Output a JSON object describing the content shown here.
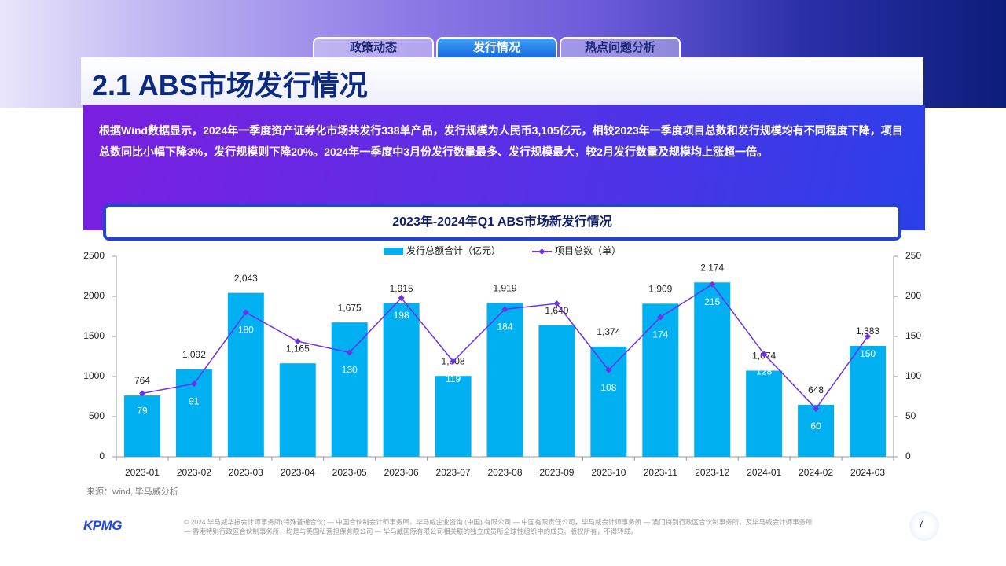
{
  "tabs": [
    "政策动态",
    "发行情况",
    "热点问题分析"
  ],
  "heading": "2.1 ABS市场发行情况",
  "summary": "根据Wind数据显示，2024年一季度资产证券化市场共发行338单产品，发行规模为人民币3,105亿元，相较2023年一季度项目总数和发行规模均有不同程度下降，项目总数同比小幅下降3%，发行规模则下降20%。2024年一季度中3月份发行数量最多、发行规模最大，较2月发行数量及规模均上涨超一倍。",
  "chart_data": {
    "type": "bar",
    "title": "2023年-2024年Q1 ABS市场新发行情况",
    "categories": [
      "2023-01",
      "2023-02",
      "2023-03",
      "2023-04",
      "2023-05",
      "2023-06",
      "2023-07",
      "2023-08",
      "2023-09",
      "2023-10",
      "2023-11",
      "2023-12",
      "2024-01",
      "2024-02",
      "2024-03"
    ],
    "series": [
      {
        "name": "发行总额合计（亿元）",
        "type": "bar",
        "color": "#00b0f0",
        "values": [
          764,
          1092,
          2043,
          1165,
          1675,
          1915,
          1008,
          1919,
          1640,
          1374,
          1909,
          2174,
          1074,
          648,
          1383
        ],
        "value_labels": [
          "764",
          "1,092",
          "2,043",
          "1,165",
          "1,675",
          "1,915",
          "1,008",
          "1,919",
          "1,640",
          "1,374",
          "1,909",
          "2,174",
          "1,074",
          "648",
          "1,383"
        ]
      },
      {
        "name": "项目总数（单）",
        "type": "line",
        "color": "#7030e8",
        "axis": "y2",
        "values": [
          79,
          91,
          180,
          144,
          130,
          198,
          119,
          184,
          191,
          108,
          174,
          215,
          128,
          60,
          150
        ]
      }
    ],
    "ylim": [
      0,
      2500
    ],
    "yticks": [
      0,
      500,
      1000,
      1500,
      2000,
      2500
    ],
    "y2lim": [
      0,
      250
    ],
    "y2ticks": [
      0,
      50,
      100,
      150,
      200,
      250
    ],
    "legend": "top"
  },
  "source": "来源：wind, 毕马威分析",
  "logo": "KPMG",
  "footer": "© 2024 毕马威华振会计师事务所(特殊普通合伙) — 中国合伙制会计师事务所，毕马威企业咨询 (中国) 有限公司 — 中国有限责任公司，毕马威会计师事务所 — 澳门特别行政区合伙制事务所，及毕马威会计师事务所 — 香港特别行政区合伙制事务所，均是与英国私营担保有限公司 — 毕马威国际有限公司相关联的独立成员所全球性组织中的成员。版权所有，不得转载。",
  "page_number": "7"
}
